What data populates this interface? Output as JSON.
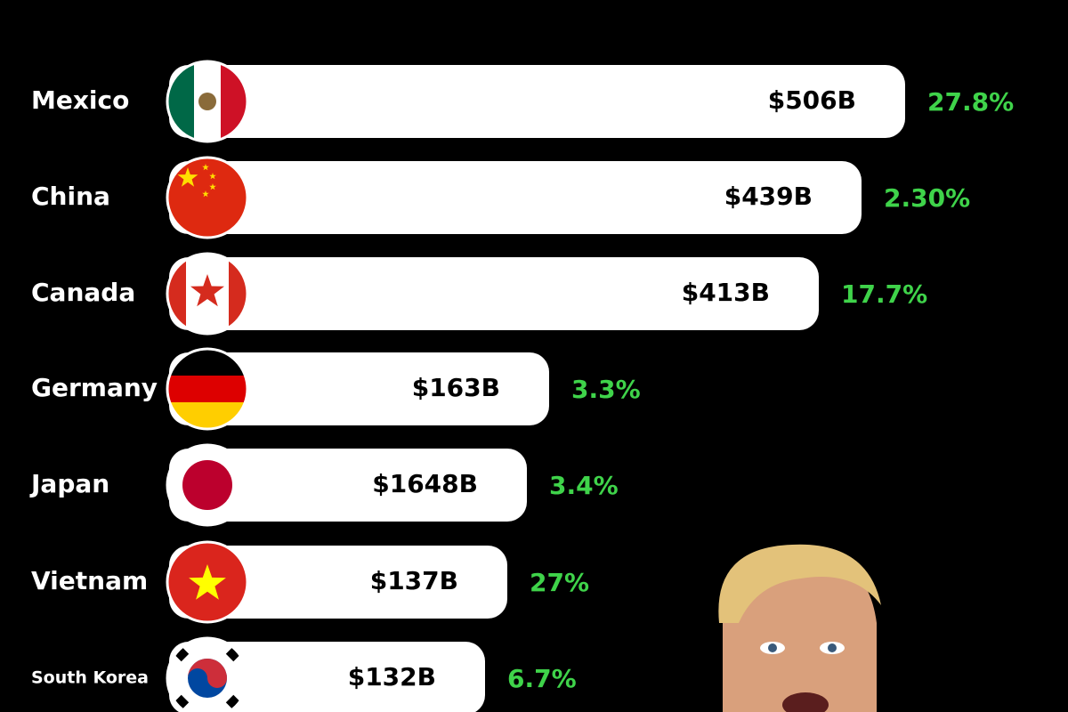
{
  "rows": [
    {
      "country": "Mexico",
      "value": "$506B",
      "change": "27.8%"
    },
    {
      "country": "China",
      "value": "$439B",
      "change": "2.30%"
    },
    {
      "country": "Canada",
      "value": "$413B",
      "change": "17.7%"
    },
    {
      "country": "Germany",
      "value": "$163B",
      "change": "3.3%"
    },
    {
      "country": "Japan",
      "value": "$1648B",
      "change": "3.4%"
    },
    {
      "country": "Vietnam",
      "value": "$137B",
      "change": "27%"
    },
    {
      "country": "South Korea",
      "value": "$132B",
      "change": "6.7%"
    }
  ]
}
